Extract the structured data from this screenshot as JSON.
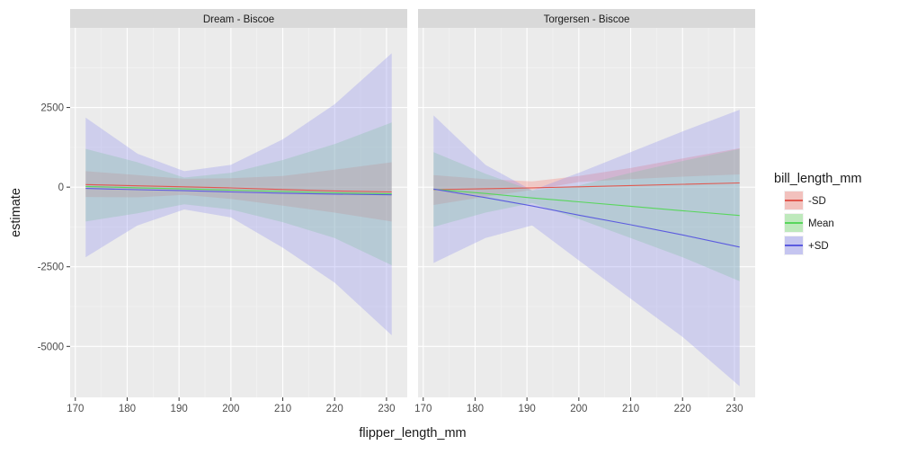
{
  "chart_data": {
    "type": "line",
    "xlabel": "flipper_length_mm",
    "ylabel": "estimate",
    "xlim": [
      169,
      234
    ],
    "ylim": [
      -6600,
      5000
    ],
    "x_ticks": [
      170,
      180,
      190,
      200,
      210,
      220,
      230
    ],
    "y_ticks": [
      2500,
      0,
      -2500,
      -5000
    ],
    "y_tick_labels": [
      "2500",
      "0",
      "-2500",
      "-5000"
    ],
    "grid": true,
    "legend": {
      "title": "bill_length_mm",
      "position": "right",
      "entries": [
        {
          "name": "-SD",
          "color": "#e0584f",
          "fill": "#f2b8b4"
        },
        {
          "name": "Mean",
          "color": "#58d65c",
          "fill": "#b5e8b3"
        },
        {
          "name": "+SD",
          "color": "#5b5bdf",
          "fill": "#bdbdf0"
        }
      ]
    },
    "panels": [
      {
        "title": "Dream - Biscoe",
        "series": [
          {
            "name": "-SD",
            "color": "#e0584f",
            "fill": "#f8766d",
            "x": [
              172,
              182,
              191,
              200,
              210,
              220,
              231
            ],
            "y": [
              80,
              42,
              10,
              -25,
              -75,
              -120,
              -150
            ],
            "lower": [
              -310,
              -320,
              -240,
              -370,
              -580,
              -800,
              -1080
            ],
            "upper": [
              500,
              380,
              260,
              280,
              350,
              550,
              780
            ]
          },
          {
            "name": "Mean",
            "color": "#58d65c",
            "fill": "#7cd97f",
            "x": [
              172,
              182,
              191,
              200,
              210,
              220,
              231
            ],
            "y": [
              20,
              -20,
              -55,
              -95,
              -140,
              -180,
              -210
            ],
            "lower": [
              -1080,
              -820,
              -540,
              -700,
              -1100,
              -1600,
              -2450
            ],
            "upper": [
              1200,
              780,
              300,
              450,
              850,
              1350,
              2030
            ]
          },
          {
            "name": "+SD",
            "color": "#5b5bdf",
            "fill": "#8c8cef",
            "x": [
              172,
              182,
              191,
              200,
              210,
              220,
              231
            ],
            "y": [
              -40,
              -80,
              -110,
              -150,
              -190,
              -220,
              -240
            ],
            "lower": [
              -2200,
              -1200,
              -700,
              -950,
              -1900,
              -3000,
              -4650
            ],
            "upper": [
              2180,
              1050,
              500,
              700,
              1500,
              2600,
              4200
            ]
          }
        ]
      },
      {
        "title": "Torgersen - Biscoe",
        "series": [
          {
            "name": "-SD",
            "color": "#e0584f",
            "fill": "#f8766d",
            "x": [
              172,
              182,
              191,
              200,
              210,
              220,
              231
            ],
            "y": [
              -80,
              -50,
              -20,
              10,
              50,
              90,
              130
            ],
            "lower": [
              -560,
              -300,
              -90,
              160,
              250,
              330,
              400
            ],
            "upper": [
              380,
              250,
              180,
              350,
              600,
              900,
              1220
            ]
          },
          {
            "name": "Mean",
            "color": "#58d65c",
            "fill": "#7cd97f",
            "x": [
              172,
              182,
              191,
              200,
              210,
              220,
              231
            ],
            "y": [
              -70,
              -200,
              -340,
              -460,
              -600,
              -740,
              -890
            ],
            "lower": [
              -1250,
              -800,
              -500,
              -1000,
              -1600,
              -2200,
              -2950
            ],
            "upper": [
              1100,
              420,
              -100,
              50,
              450,
              820,
              1200
            ]
          },
          {
            "name": "+SD",
            "color": "#5b5bdf",
            "fill": "#8c8cef",
            "x": [
              172,
              182,
              191,
              200,
              210,
              220,
              231
            ],
            "y": [
              -60,
              -330,
              -590,
              -880,
              -1180,
              -1500,
              -1880
            ],
            "lower": [
              -2380,
              -1600,
              -1200,
              -2300,
              -3500,
              -4700,
              -6250
            ],
            "upper": [
              2250,
              700,
              -100,
              450,
              1100,
              1750,
              2430
            ]
          }
        ]
      }
    ]
  }
}
